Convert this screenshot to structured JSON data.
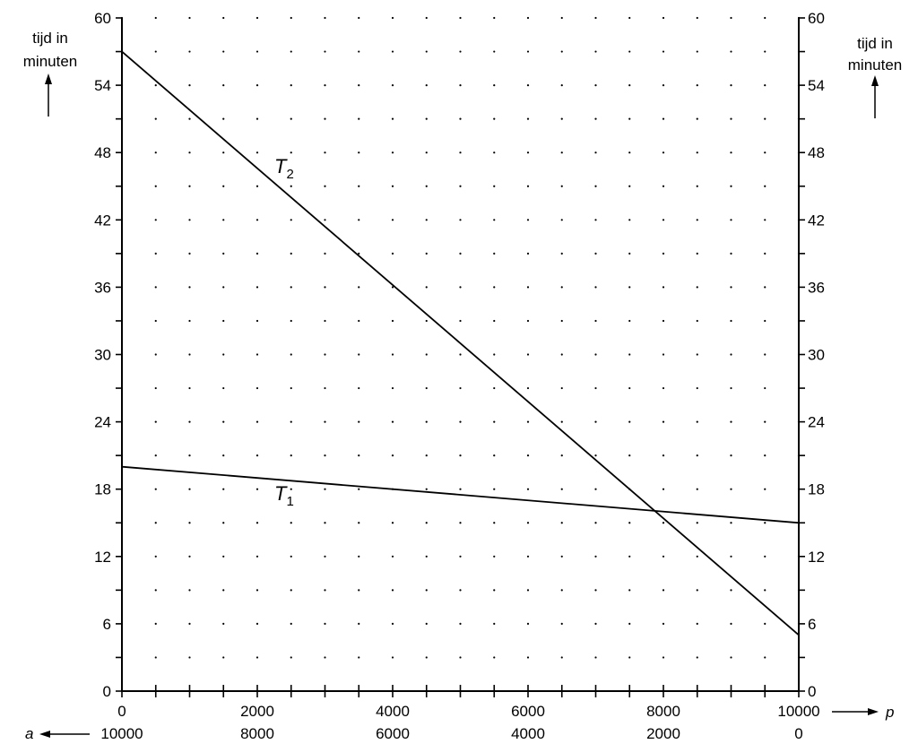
{
  "chart_data": {
    "type": "line",
    "ylabel_left": [
      "tijd in",
      "minuten"
    ],
    "ylabel_right": [
      "tijd in",
      "minuten"
    ],
    "y_ticks": [
      0,
      6,
      12,
      18,
      24,
      30,
      36,
      42,
      48,
      54,
      60
    ],
    "ylim": [
      0,
      60
    ],
    "x_axis_p": {
      "label": "p",
      "ticks": [
        0,
        2000,
        4000,
        6000,
        8000,
        10000
      ],
      "tick_labels": [
        "0",
        "2000",
        "4000",
        "6000",
        "8000",
        "10000"
      ],
      "range": [
        0,
        10000
      ]
    },
    "x_axis_a": {
      "label": "a",
      "tick_labels": [
        "10000",
        "8000",
        "6000",
        "4000",
        "2000",
        "0"
      ]
    },
    "grid": "dotted",
    "series": [
      {
        "name": "T",
        "subscript": "2",
        "x": [
          0,
          10000
        ],
        "y": [
          57,
          5
        ]
      },
      {
        "name": "T",
        "subscript": "1",
        "x": [
          0,
          10000
        ],
        "y": [
          20,
          15
        ]
      }
    ]
  }
}
